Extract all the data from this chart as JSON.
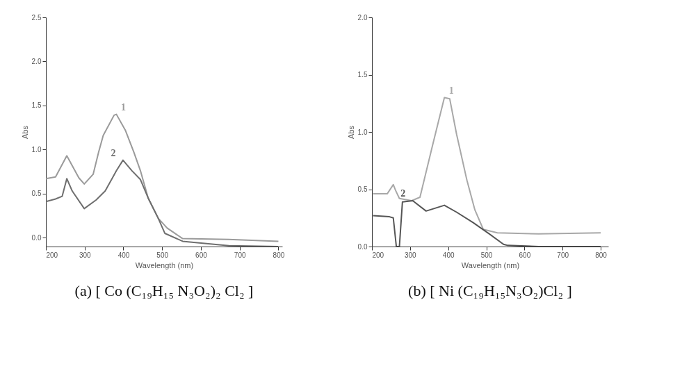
{
  "chart_data": [
    {
      "type": "line",
      "title": "(a) [ Co (C₁₉H₁₅ N₃O₂)₂ Cl₂ ]",
      "xlabel": "Wavelength (nm)",
      "ylabel": "Abs",
      "xlim": [
        200,
        810
      ],
      "xticks": [
        200,
        300,
        400,
        500,
        600,
        700,
        800
      ],
      "ylim": [
        -0.1,
        2.5
      ],
      "yticks": [
        {
          "value": 0,
          "label": "0.0"
        },
        {
          "value": 0.5,
          "label": "0.5"
        },
        {
          "value": 1,
          "label": "1.0"
        },
        {
          "value": 1.5,
          "label": "1.5"
        },
        {
          "value": 2,
          "label": "2.0"
        },
        {
          "value": 2.5,
          "label": "2.5"
        }
      ],
      "grid": false,
      "series": [
        {
          "name": "1",
          "color": "#9a9a9a",
          "x": [
            200,
            225,
            254,
            285,
            299,
            322,
            336,
            348,
            376,
            382,
            405,
            427,
            444,
            464,
            490,
            513,
            553,
            672,
            800
          ],
          "values": [
            0.67,
            0.69,
            0.93,
            0.68,
            0.61,
            0.72,
            0.97,
            1.16,
            1.39,
            1.4,
            1.22,
            0.97,
            0.76,
            0.45,
            0.22,
            0.11,
            -0.01,
            -0.02,
            -0.04
          ]
        },
        {
          "name": "2",
          "color": "#6e6e6e",
          "x": [
            200,
            225,
            242,
            254,
            268,
            299,
            330,
            353,
            382,
            399,
            422,
            444,
            464,
            490,
            507,
            553,
            672,
            800
          ],
          "values": [
            0.41,
            0.44,
            0.47,
            0.67,
            0.53,
            0.33,
            0.43,
            0.53,
            0.76,
            0.88,
            0.76,
            0.66,
            0.45,
            0.22,
            0.05,
            -0.04,
            -0.09,
            -0.1
          ]
        }
      ]
    },
    {
      "type": "line",
      "title": "(b) [  Ni (C₁₉H₁₅N₃O₂)Cl₂  ]",
      "xlabel": "Wavelength (nm)",
      "ylabel": "Abs",
      "xlim": [
        200,
        820
      ],
      "xticks": [
        200,
        300,
        400,
        500,
        600,
        700,
        800
      ],
      "ylim": [
        0,
        2
      ],
      "yticks": [
        {
          "value": 0,
          "label": "0.0"
        },
        {
          "value": 0.5,
          "label": "0.5"
        },
        {
          "value": 1,
          "label": "1.0"
        },
        {
          "value": 1.5,
          "label": "1.5"
        },
        {
          "value": 2,
          "label": "2.0"
        }
      ],
      "grid": false,
      "series": [
        {
          "name": "1",
          "color": "#a8a8a8",
          "x": [
            203,
            240,
            256,
            262,
            272,
            304,
            326,
            358,
            390,
            404,
            422,
            449,
            470,
            492,
            529,
            637,
            800
          ],
          "values": [
            0.46,
            0.46,
            0.54,
            0.49,
            0.42,
            0.4,
            0.43,
            0.87,
            1.3,
            1.29,
            0.98,
            0.58,
            0.32,
            0.15,
            0.12,
            0.11,
            0.12
          ]
        },
        {
          "name": "2",
          "color": "#555555",
          "x": [
            203,
            246,
            256,
            264,
            272,
            280,
            307,
            342,
            390,
            422,
            465,
            508,
            545,
            556,
            637,
            800
          ],
          "values": [
            0.27,
            0.26,
            0.25,
            0,
            0,
            0.39,
            0.4,
            0.31,
            0.36,
            0.3,
            0.21,
            0.11,
            0.02,
            0.01,
            0,
            0
          ]
        }
      ]
    }
  ]
}
